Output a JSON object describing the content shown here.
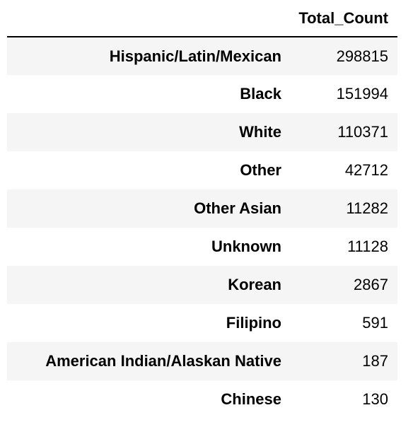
{
  "table": {
    "index_header": "",
    "columns": [
      "Total_Count"
    ],
    "rows": [
      {
        "label": "Hispanic/Latin/Mexican",
        "value": "298815"
      },
      {
        "label": "Black",
        "value": "151994"
      },
      {
        "label": "White",
        "value": "110371"
      },
      {
        "label": "Other",
        "value": "42712"
      },
      {
        "label": "Other Asian",
        "value": "11282"
      },
      {
        "label": "Unknown",
        "value": "11128"
      },
      {
        "label": "Korean",
        "value": "2867"
      },
      {
        "label": "Filipino",
        "value": "591"
      },
      {
        "label": "American Indian/Alaskan Native",
        "value": "187"
      },
      {
        "label": "Chinese",
        "value": "130"
      }
    ]
  },
  "colors": {
    "stripe": "#f5f5f5",
    "rule": "#000000"
  }
}
